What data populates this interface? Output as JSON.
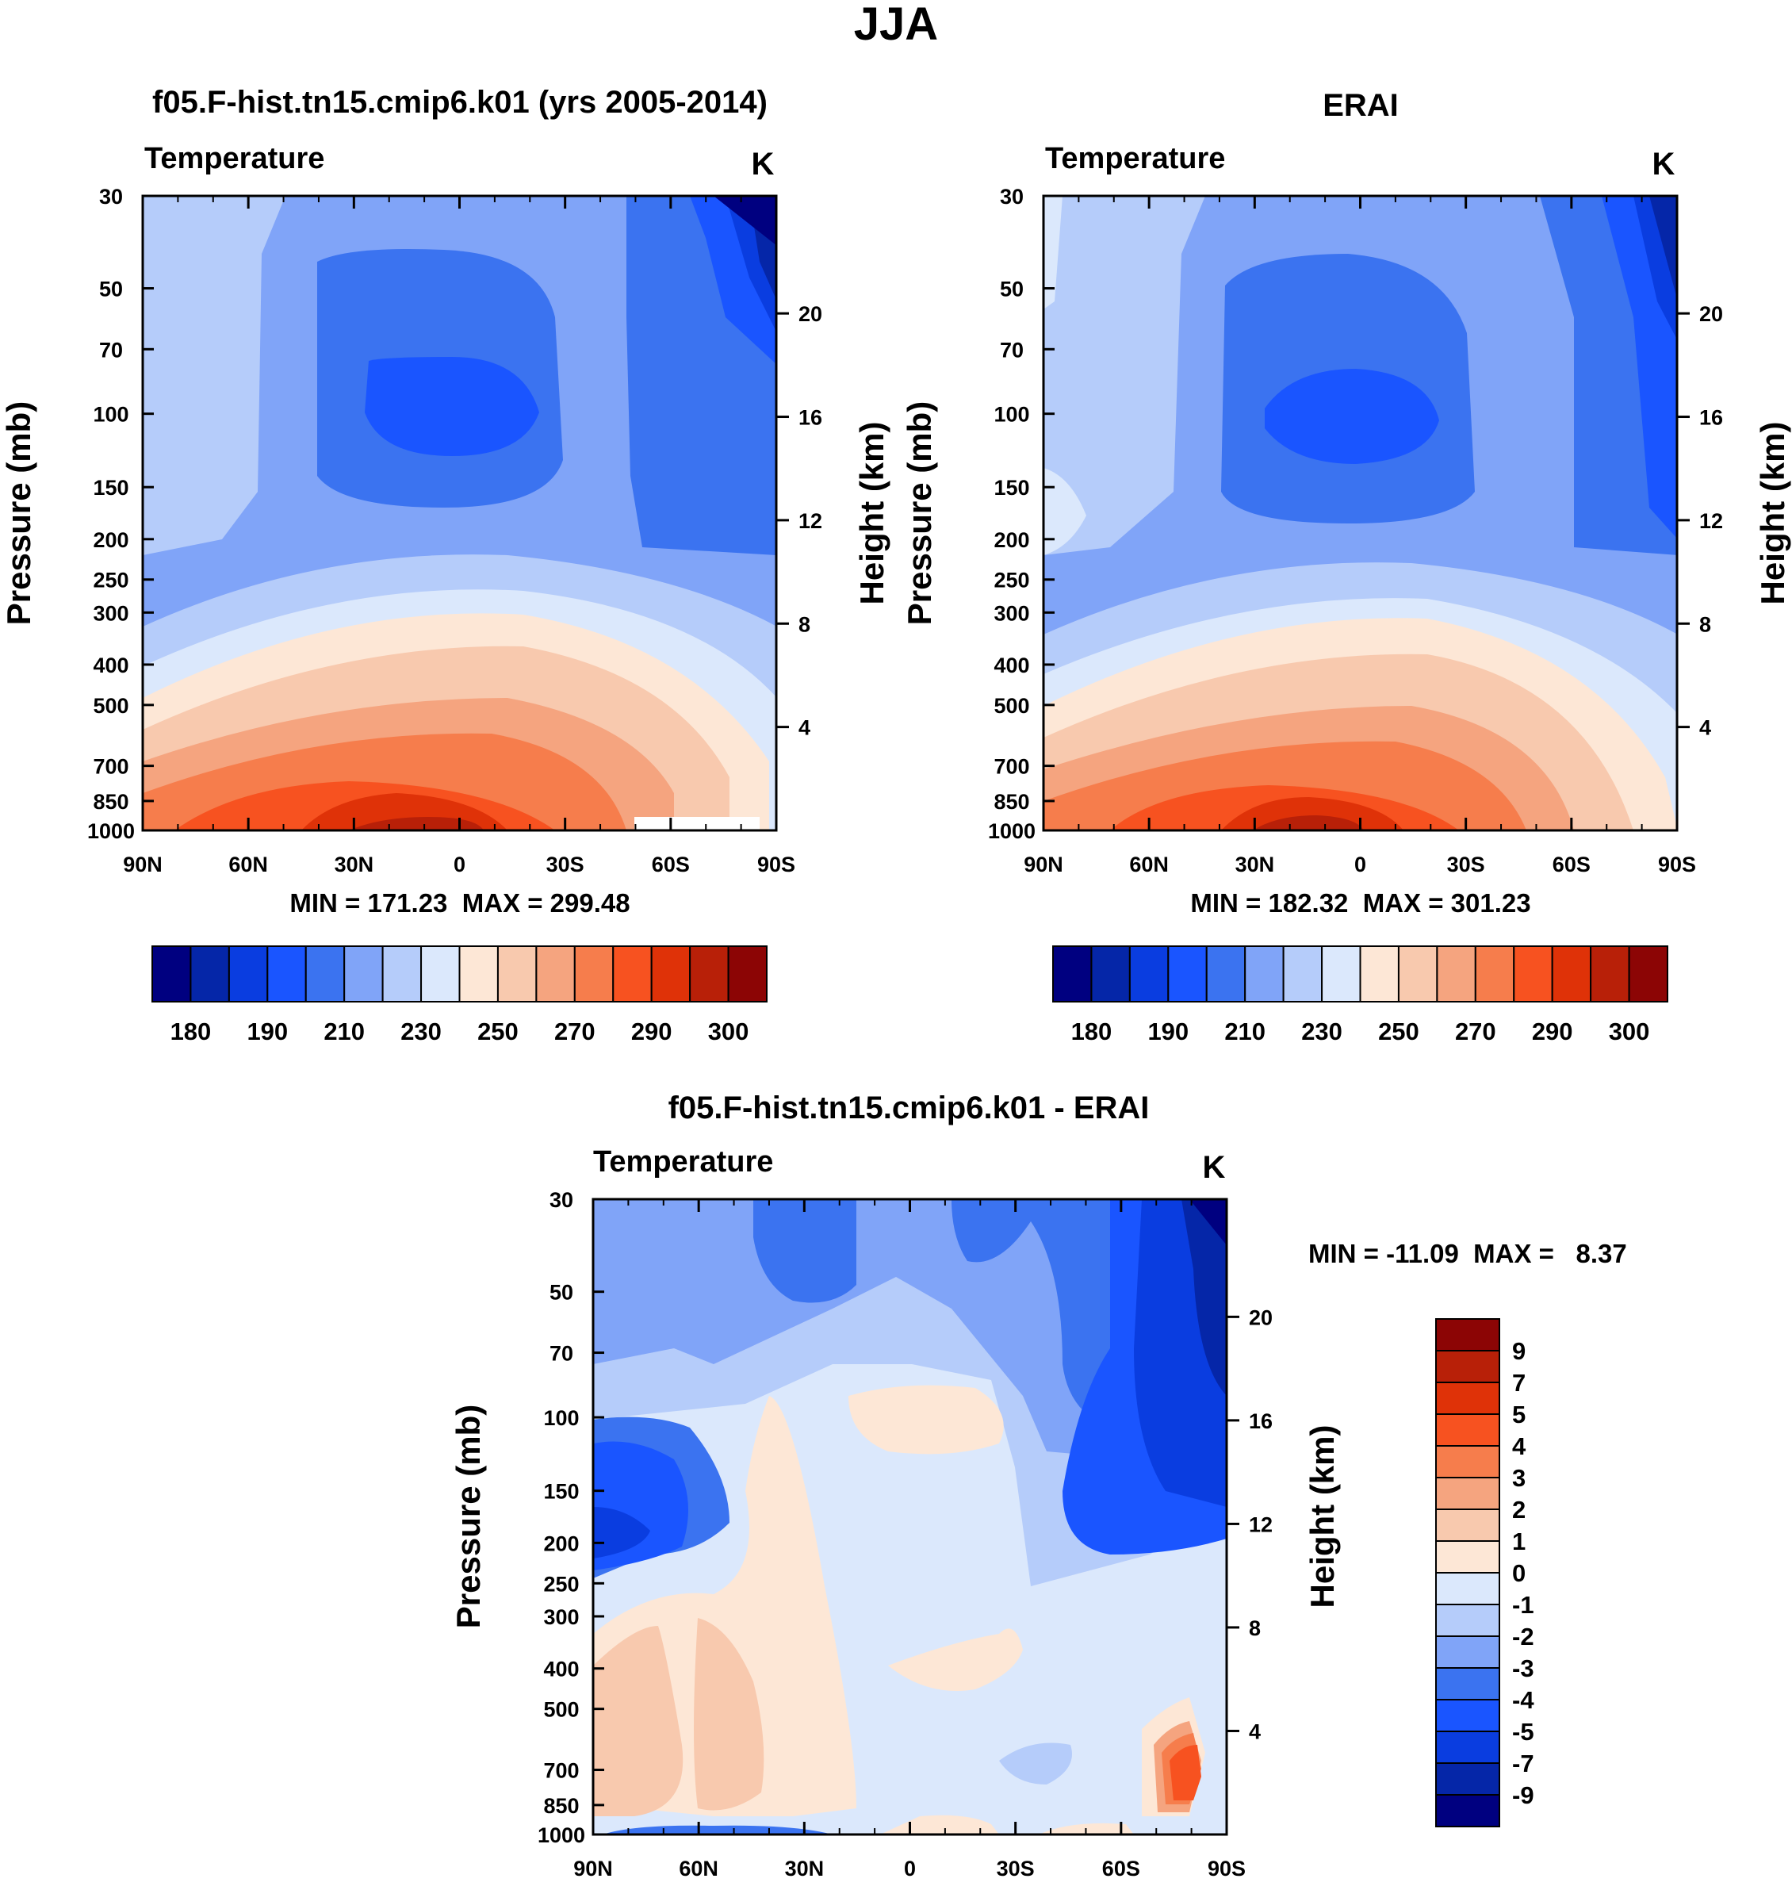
{
  "figure": {
    "title": "JJA",
    "colors": {
      "abs_scale": [
        "#000080",
        "#0526a8",
        "#0a3de0",
        "#1a55ff",
        "#3b73f0",
        "#80a4f8",
        "#b5ccfa",
        "#dbe8fc",
        "#fde7d6",
        "#f8c9ae",
        "#f5a47f",
        "#f67d4c",
        "#f75220",
        "#df3208",
        "#b82008",
        "#8c0505"
      ],
      "diff_scale": [
        "#000080",
        "#0526a8",
        "#0a3de0",
        "#1a55ff",
        "#3b73f0",
        "#80a4f8",
        "#b5ccfa",
        "#dbe8fc",
        "#fde7d6",
        "#f8c9ae",
        "#f5a47f",
        "#f67d4c",
        "#f75220",
        "#df3208",
        "#b82008",
        "#8c0505"
      ]
    }
  },
  "panels": [
    {
      "title": "f05.F-hist.tn15.cmip6.k01 (yrs 2005-2014)",
      "left_label": "Temperature",
      "units": "K",
      "y_label": "Pressure (mb)",
      "y2_label": "Height (km)",
      "minmax": "MIN = 171.23  MAX = 299.48"
    },
    {
      "title": "ERAI",
      "left_label": "Temperature",
      "units": "K",
      "y_label": "Pressure (mb)",
      "y2_label": "Height (km)",
      "minmax": "MIN = 182.32  MAX = 301.23"
    },
    {
      "title": "f05.F-hist.tn15.cmip6.k01 - ERAI",
      "left_label": "Temperature",
      "units": "K",
      "y_label": "Pressure (mb)",
      "y2_label": "Height (km)",
      "minmax": "MIN = -11.09  MAX =   8.37"
    }
  ],
  "chart_data": [
    {
      "type": "heatmap",
      "title": "f05.F-hist.tn15.cmip6.k01 (yrs 2005-2014)",
      "subtitle": "Temperature",
      "units": "K",
      "ylabel": "Pressure (mb)",
      "y2label": "Height (km)",
      "x_ticks": [
        "90N",
        "60N",
        "30N",
        "0",
        "30S",
        "60S",
        "90S"
      ],
      "y_ticks": [
        30,
        50,
        70,
        100,
        150,
        200,
        250,
        300,
        400,
        500,
        700,
        850,
        1000
      ],
      "y2_ticks": [
        4,
        8,
        12,
        16,
        20
      ],
      "y_scale": "log",
      "ylim": [
        1000,
        30
      ],
      "min": 171.23,
      "max": 299.48,
      "colorbar_labels": [
        "180",
        "190",
        "210",
        "230",
        "250",
        "270",
        "290",
        "300"
      ]
    },
    {
      "type": "heatmap",
      "title": "ERAI",
      "subtitle": "Temperature",
      "units": "K",
      "ylabel": "Pressure (mb)",
      "y2label": "Height (km)",
      "x_ticks": [
        "90N",
        "60N",
        "30N",
        "0",
        "30S",
        "60S",
        "90S"
      ],
      "y_ticks": [
        30,
        50,
        70,
        100,
        150,
        200,
        250,
        300,
        400,
        500,
        700,
        850,
        1000
      ],
      "y2_ticks": [
        4,
        8,
        12,
        16,
        20
      ],
      "y_scale": "log",
      "ylim": [
        1000,
        30
      ],
      "min": 182.32,
      "max": 301.23,
      "colorbar_labels": [
        "180",
        "190",
        "210",
        "230",
        "250",
        "270",
        "290",
        "300"
      ]
    },
    {
      "type": "heatmap",
      "title": "f05.F-hist.tn15.cmip6.k01 - ERAI",
      "subtitle": "Temperature",
      "units": "K",
      "ylabel": "Pressure (mb)",
      "y2label": "Height (km)",
      "x_ticks": [
        "90N",
        "60N",
        "30N",
        "0",
        "30S",
        "60S",
        "90S"
      ],
      "y_ticks": [
        30,
        50,
        70,
        100,
        150,
        200,
        250,
        300,
        400,
        500,
        700,
        850,
        1000
      ],
      "y2_ticks": [
        4,
        8,
        12,
        16,
        20
      ],
      "y_scale": "log",
      "ylim": [
        1000,
        30
      ],
      "min": -11.09,
      "max": 8.37,
      "colorbar_labels": [
        "9",
        "7",
        "5",
        "4",
        "3",
        "2",
        "1",
        "0",
        "-1",
        "-2",
        "-3",
        "-4",
        "-5",
        "-7",
        "-9"
      ]
    }
  ]
}
